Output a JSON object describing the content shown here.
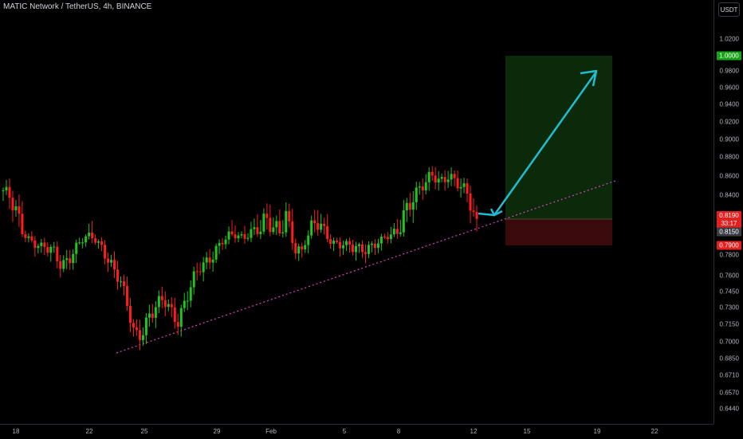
{
  "header": {
    "title": "MATIC Network / TetherUS, 4h, BINANCE"
  },
  "price_axis": {
    "currency": "USDT",
    "ticks": [
      "1.0200",
      "0.9800",
      "0.9600",
      "0.9400",
      "0.9200",
      "0.9000",
      "0.8800",
      "0.8600",
      "0.8400",
      "0.7800",
      "0.7600",
      "0.7450",
      "0.7300",
      "0.7150",
      "0.7000",
      "0.6850",
      "0.6710",
      "0.6570",
      "0.6440"
    ],
    "labels": {
      "target": "1.0000",
      "current": "0.8190",
      "countdown": "33:17",
      "entry": "0.8150",
      "stop": "0.7900"
    }
  },
  "time_axis": {
    "ticks": [
      "18",
      "22",
      "25",
      "29",
      "Feb",
      "5",
      "8",
      "12",
      "15",
      "19",
      "22"
    ]
  },
  "colors": {
    "up": "#22c41f",
    "down": "#ff1c1c",
    "target_zone": "#0a2a0a",
    "stop_zone": "#3a0a0a",
    "arrow": "#1fbcd2",
    "trendline": "#e040c8"
  },
  "chart_data": {
    "type": "candlestick",
    "symbol": "MATIC Network / TetherUS",
    "interval": "4h",
    "exchange": "BINANCE",
    "x": [
      "18",
      "22",
      "25",
      "29",
      "Feb",
      "5",
      "8",
      "12",
      "15",
      "19",
      "22"
    ],
    "close_path": [
      0.845,
      0.835,
      0.823,
      0.81,
      0.8,
      0.79,
      0.785,
      0.78,
      0.77,
      0.78,
      0.79,
      0.8,
      0.805,
      0.795,
      0.785,
      0.77,
      0.755,
      0.73,
      0.705,
      0.71,
      0.725,
      0.73,
      0.735,
      0.725,
      0.72,
      0.74,
      0.755,
      0.765,
      0.77,
      0.785,
      0.8,
      0.81,
      0.805,
      0.8,
      0.815,
      0.82,
      0.825,
      0.815,
      0.81,
      0.83,
      0.79,
      0.785,
      0.81,
      0.82,
      0.815,
      0.8,
      0.795,
      0.79,
      0.785,
      0.785,
      0.79,
      0.795,
      0.8,
      0.805,
      0.81,
      0.83,
      0.84,
      0.845,
      0.85,
      0.86,
      0.855,
      0.865,
      0.855,
      0.845,
      0.835,
      0.82
    ],
    "position": {
      "target": 1.0,
      "entry": 0.815,
      "stop": 0.79
    },
    "trendline": {
      "from": 0.7,
      "to": 0.855
    },
    "ylim": [
      0.638,
      1.04
    ]
  }
}
